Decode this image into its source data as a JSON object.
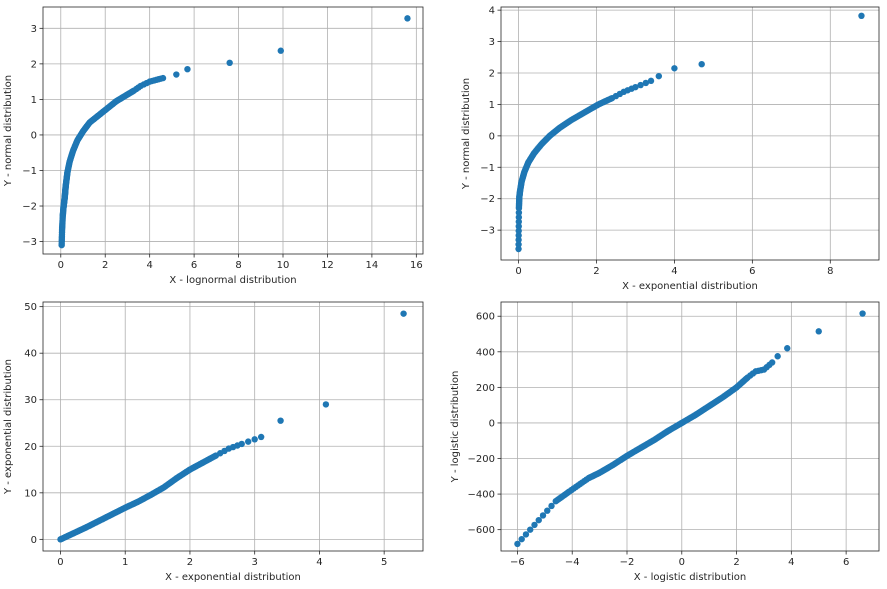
{
  "colors": {
    "marker": "#1f77b4",
    "grid": "#b0b0b0",
    "axes": "#262626"
  },
  "chart_data": [
    {
      "type": "scatter",
      "title": "",
      "xlabel": "X - lognormal distribution",
      "ylabel": "Y - normal distribution",
      "xlim": [
        -0.8,
        16.3
      ],
      "ylim": [
        -3.35,
        3.6
      ],
      "xticks": [
        0,
        2,
        4,
        6,
        8,
        10,
        12,
        14,
        16
      ],
      "yticks": [
        -3,
        -2,
        -1,
        0,
        1,
        2,
        3
      ],
      "grid": true,
      "kind": "qq",
      "anchor_points": [
        [
          0.04,
          -3.1
        ],
        [
          0.06,
          -2.65
        ],
        [
          0.09,
          -2.28
        ],
        [
          0.12,
          -2.05
        ],
        [
          0.15,
          -1.9
        ],
        [
          0.18,
          -1.75
        ],
        [
          0.2,
          -1.6
        ],
        [
          0.22,
          -1.45
        ],
        [
          0.26,
          -1.25
        ],
        [
          0.3,
          -1.05
        ],
        [
          0.4,
          -0.75
        ],
        [
          0.55,
          -0.45
        ],
        [
          0.75,
          -0.15
        ],
        [
          1.0,
          0.1
        ],
        [
          1.3,
          0.35
        ],
        [
          1.7,
          0.55
        ],
        [
          2.1,
          0.75
        ],
        [
          2.5,
          0.95
        ],
        [
          2.9,
          1.1
        ],
        [
          3.3,
          1.25
        ],
        [
          3.6,
          1.38
        ],
        [
          4.0,
          1.5
        ],
        [
          4.3,
          1.55
        ],
        [
          4.6,
          1.6
        ],
        [
          5.2,
          1.7
        ],
        [
          5.7,
          1.85
        ],
        [
          7.6,
          2.03
        ],
        [
          9.9,
          2.37
        ],
        [
          15.6,
          3.28
        ]
      ]
    },
    {
      "type": "scatter",
      "title": "",
      "xlabel": "X - exponential distribution",
      "ylabel": "Y - normal distribution",
      "xlim": [
        -0.45,
        9.25
      ],
      "ylim": [
        -3.95,
        4.1
      ],
      "xticks": [
        0,
        2,
        4,
        6,
        8
      ],
      "yticks": [
        -3,
        -2,
        -1,
        0,
        1,
        2,
        3,
        4
      ],
      "grid": true,
      "kind": "qq",
      "anchor_points": [
        [
          0.0,
          -3.6
        ],
        [
          0.01,
          -2.3
        ],
        [
          0.02,
          -1.95
        ],
        [
          0.04,
          -1.75
        ],
        [
          0.08,
          -1.45
        ],
        [
          0.15,
          -1.15
        ],
        [
          0.25,
          -0.85
        ],
        [
          0.4,
          -0.55
        ],
        [
          0.6,
          -0.25
        ],
        [
          0.8,
          0.0
        ],
        [
          1.05,
          0.25
        ],
        [
          1.35,
          0.5
        ],
        [
          1.7,
          0.75
        ],
        [
          2.05,
          1.0
        ],
        [
          2.4,
          1.2
        ],
        [
          2.7,
          1.4
        ],
        [
          3.0,
          1.55
        ],
        [
          3.4,
          1.75
        ],
        [
          3.6,
          1.9
        ],
        [
          4.0,
          2.15
        ],
        [
          4.7,
          2.28
        ],
        [
          8.8,
          3.82
        ]
      ]
    },
    {
      "type": "scatter",
      "title": "",
      "xlabel": "X - exponential distribution",
      "ylabel": "Y - exponential distribution",
      "xlim": [
        -0.27,
        5.6
      ],
      "ylim": [
        -2.5,
        51
      ],
      "xticks": [
        0,
        1,
        2,
        3,
        4,
        5
      ],
      "yticks": [
        0,
        10,
        20,
        30,
        40,
        50
      ],
      "grid": true,
      "kind": "qq",
      "anchor_points": [
        [
          0.0,
          0.0
        ],
        [
          0.2,
          1.3
        ],
        [
          0.4,
          2.6
        ],
        [
          0.6,
          4.0
        ],
        [
          0.8,
          5.4
        ],
        [
          1.0,
          6.8
        ],
        [
          1.2,
          8.1
        ],
        [
          1.4,
          9.6
        ],
        [
          1.6,
          11.2
        ],
        [
          1.8,
          13.2
        ],
        [
          2.0,
          15.0
        ],
        [
          2.2,
          16.5
        ],
        [
          2.4,
          18.0
        ],
        [
          2.6,
          19.5
        ],
        [
          2.8,
          20.5
        ],
        [
          3.1,
          22.0
        ],
        [
          3.4,
          25.5
        ],
        [
          4.1,
          29.0
        ],
        [
          5.3,
          48.5
        ]
      ]
    },
    {
      "type": "scatter",
      "title": "",
      "xlabel": "X - logistic distribution",
      "ylabel": "Y - logistic distribution",
      "xlim": [
        -6.6,
        7.2
      ],
      "ylim": [
        -720,
        680
      ],
      "xticks": [
        -6,
        -4,
        -2,
        0,
        2,
        4,
        6
      ],
      "yticks": [
        -600,
        -400,
        -200,
        0,
        200,
        400,
        600
      ],
      "grid": true,
      "kind": "qq",
      "anchor_points": [
        [
          -6.0,
          -680
        ],
        [
          -4.6,
          -440
        ],
        [
          -4.1,
          -385
        ],
        [
          -3.4,
          -310
        ],
        [
          -3.0,
          -280
        ],
        [
          -2.5,
          -235
        ],
        [
          -2.0,
          -185
        ],
        [
          -1.5,
          -140
        ],
        [
          -1.0,
          -95
        ],
        [
          -0.5,
          -45
        ],
        [
          0.0,
          0
        ],
        [
          0.5,
          45
        ],
        [
          1.0,
          95
        ],
        [
          1.5,
          145
        ],
        [
          2.0,
          200
        ],
        [
          2.4,
          255
        ],
        [
          2.7,
          290
        ],
        [
          3.0,
          300
        ],
        [
          3.3,
          340
        ],
        [
          3.5,
          375
        ],
        [
          3.85,
          420
        ],
        [
          5.0,
          515
        ],
        [
          6.6,
          615
        ]
      ]
    }
  ]
}
